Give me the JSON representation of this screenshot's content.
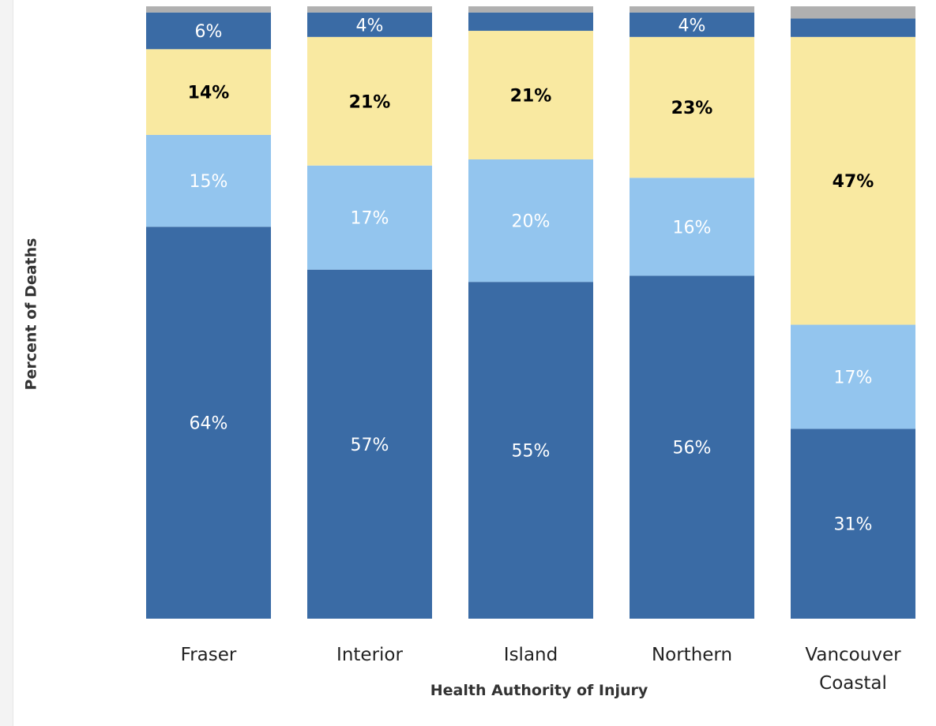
{
  "chart_data": {
    "type": "stacked_bar",
    "categories": [
      "Fraser",
      "Interior",
      "Island",
      "Northern",
      "Vancouver Coastal"
    ],
    "xlabel": "Health Authority of Injury",
    "ylabel": "Percent of Deaths",
    "ylim": [
      0,
      100
    ],
    "series": [
      {
        "color": "#3a6ba5",
        "label_color": "#ffffff",
        "values": [
          64,
          57,
          55,
          56,
          31
        ],
        "value_labels": [
          "64%",
          "57%",
          "55%",
          "56%",
          "31%"
        ]
      },
      {
        "color": "#93c5ee",
        "label_color": "#ffffff",
        "values": [
          15,
          17,
          20,
          16,
          17
        ],
        "value_labels": [
          "15%",
          "17%",
          "20%",
          "16%",
          "17%"
        ]
      },
      {
        "color": "#f9e9a1",
        "label_color": "#000000",
        "values": [
          14,
          21,
          21,
          23,
          47
        ],
        "value_labels": [
          "14%",
          "21%",
          "21%",
          "23%",
          "47%"
        ]
      },
      {
        "color": "#3a6ba5",
        "label_color": "#ffffff",
        "values": [
          6,
          4,
          3,
          4,
          3
        ],
        "value_labels": [
          "6%",
          "4%",
          null,
          "4%",
          null
        ]
      },
      {
        "color": "#b0b0b0",
        "label_color": "#ffffff",
        "values": [
          1,
          1,
          1,
          1,
          2
        ],
        "value_labels": [
          null,
          null,
          null,
          null,
          null
        ]
      }
    ]
  }
}
